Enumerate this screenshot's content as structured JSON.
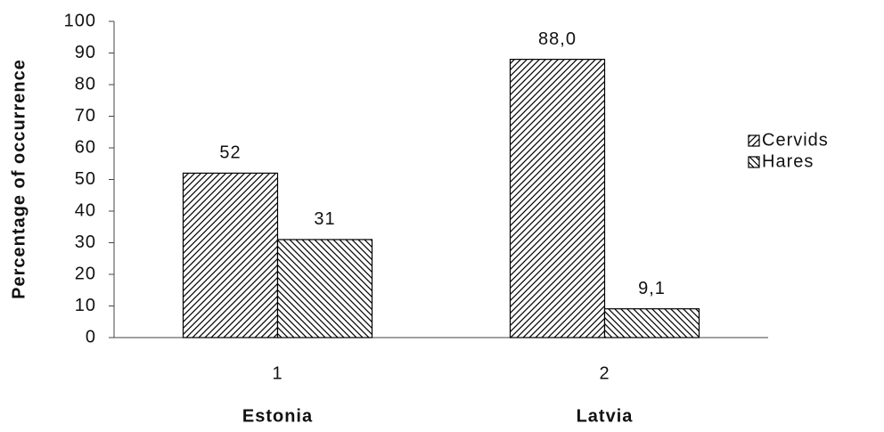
{
  "chart_data": {
    "type": "bar",
    "y_label": "Percentage of occurrence",
    "categories": [
      "1",
      "2"
    ],
    "category_names": [
      "Estonia",
      "Latvia"
    ],
    "series": [
      {
        "name": "Cervids",
        "color": "#000000",
        "hatch": "/",
        "values": [
          52,
          88
        ],
        "value_labels": [
          "52",
          "88,0"
        ]
      },
      {
        "name": "Hares",
        "color": "#000000",
        "hatch": "\\",
        "values": [
          31,
          9.1
        ],
        "value_labels": [
          "31",
          "9,1"
        ]
      }
    ],
    "ylim": [
      0,
      100
    ],
    "yticks": [
      0,
      10,
      20,
      30,
      40,
      50,
      60,
      70,
      80,
      90,
      100
    ],
    "grid": false,
    "legend": "right"
  }
}
